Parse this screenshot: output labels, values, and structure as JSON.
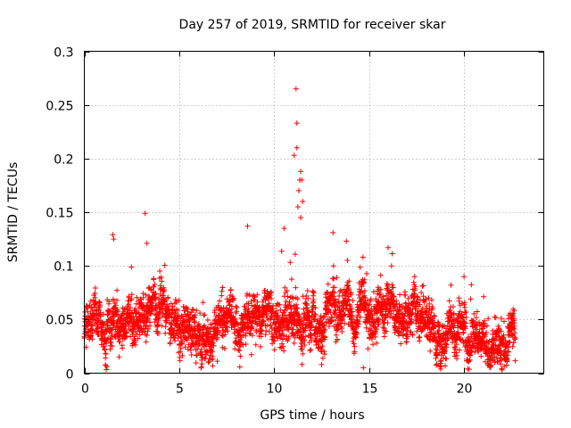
{
  "chart_data": {
    "type": "scatter",
    "title": "Day 257 of 2019, SRMTID for receiver skar",
    "xlabel": "GPS time / hours",
    "ylabel": "SRMTID / TECUs",
    "xlim": [
      0,
      24.2
    ],
    "ylim": [
      0,
      0.3
    ],
    "xticks": [
      0,
      5,
      10,
      15,
      20
    ],
    "yticks": [
      0,
      0.05,
      0.1,
      0.15,
      0.2,
      0.25,
      0.3
    ],
    "xtick_labels": [
      "0",
      "5",
      "10",
      "15",
      "20"
    ],
    "ytick_labels": [
      "0",
      "0.05",
      "0.1",
      "0.15",
      "0.2",
      "0.25",
      "0.3"
    ],
    "grid": true,
    "marker": "+",
    "color": "#ff0000",
    "x_range_of_data": [
      0,
      22.7
    ],
    "trend_anchors": {
      "x": [
        0,
        1,
        2,
        3,
        4,
        5,
        6,
        7,
        8,
        9,
        10,
        11,
        12,
        13,
        14,
        15,
        16,
        17,
        18,
        19,
        20,
        21,
        22,
        22.7
      ],
      "y": [
        0.04,
        0.045,
        0.05,
        0.058,
        0.062,
        0.05,
        0.048,
        0.045,
        0.05,
        0.058,
        0.065,
        0.05,
        0.048,
        0.06,
        0.065,
        0.06,
        0.055,
        0.05,
        0.04,
        0.03,
        0.028,
        0.03,
        0.033,
        0.035
      ]
    },
    "notable_points": [
      {
        "x": 11.15,
        "y": 0.265
      },
      {
        "x": 11.2,
        "y": 0.233
      },
      {
        "x": 11.2,
        "y": 0.21
      },
      {
        "x": 11.05,
        "y": 0.203
      },
      {
        "x": 11.4,
        "y": 0.188
      },
      {
        "x": 11.35,
        "y": 0.18
      },
      {
        "x": 11.45,
        "y": 0.18
      },
      {
        "x": 11.3,
        "y": 0.17
      },
      {
        "x": 11.5,
        "y": 0.16
      },
      {
        "x": 11.25,
        "y": 0.155
      },
      {
        "x": 11.4,
        "y": 0.145
      },
      {
        "x": 3.2,
        "y": 0.149
      },
      {
        "x": 8.6,
        "y": 0.137
      },
      {
        "x": 13.1,
        "y": 0.131
      },
      {
        "x": 1.5,
        "y": 0.129
      },
      {
        "x": 1.55,
        "y": 0.125
      },
      {
        "x": 3.3,
        "y": 0.121
      },
      {
        "x": 16.0,
        "y": 0.117
      },
      {
        "x": 13.8,
        "y": 0.123
      },
      {
        "x": 17.4,
        "y": 0.09
      },
      {
        "x": 20.0,
        "y": 0.09
      },
      {
        "x": 14.7,
        "y": 0.005
      },
      {
        "x": 1.2,
        "y": 0.006
      },
      {
        "x": 12.5,
        "y": 0.008
      }
    ]
  }
}
